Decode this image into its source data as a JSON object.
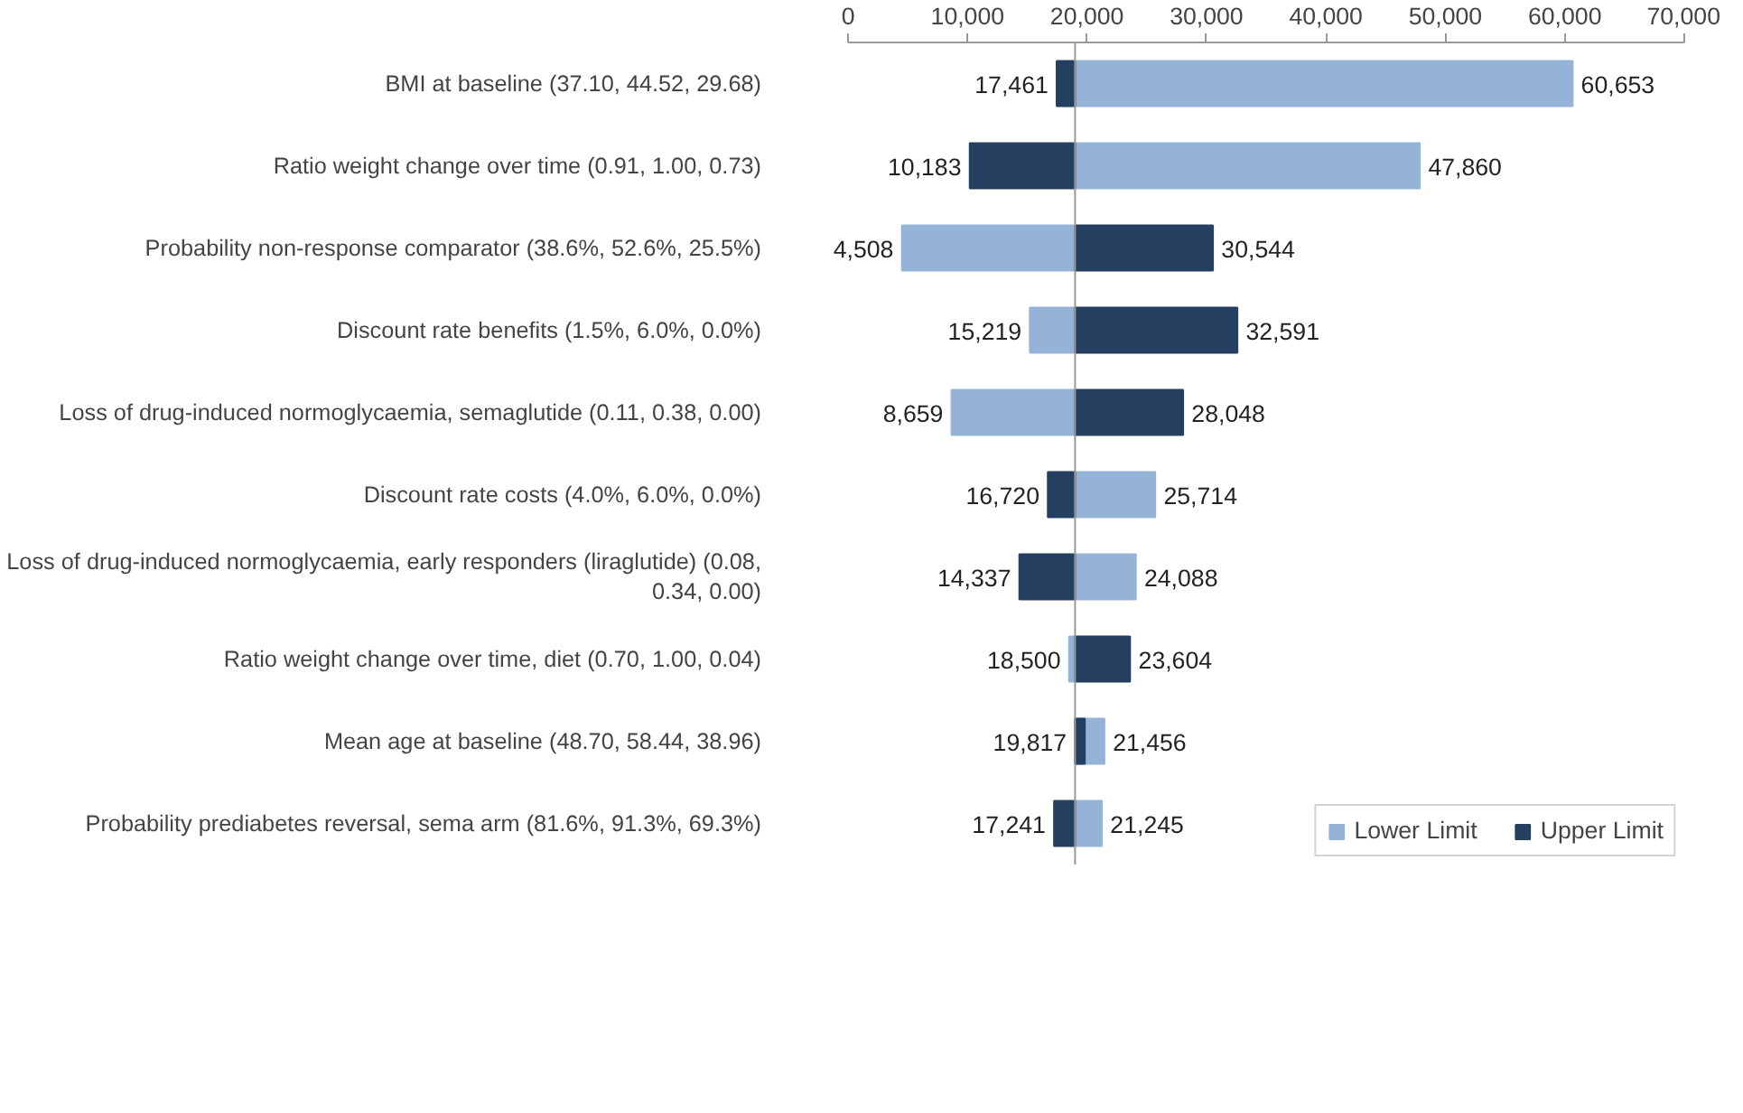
{
  "chart_data": {
    "type": "bar",
    "orientation": "horizontal",
    "categories": [
      "BMI at baseline (37.10, 44.52, 29.68)",
      "Ratio weight change over time (0.91, 1.00, 0.73)",
      "Probability non-response comparator (38.6%, 52.6%, 25.5%)",
      "Discount rate benefits (1.5%, 6.0%, 0.0%)",
      "Loss of drug-induced normoglycaemia, semaglutide (0.11, 0.38, 0.00)",
      "Discount rate costs (4.0%, 6.0%, 0.0%)",
      "Loss of drug-induced normoglycaemia, early responders (liraglutide) (0.08, 0.34, 0.00)",
      "Ratio weight change over time, diet (0.70, 1.00, 0.04)",
      "Mean age at baseline (48.70, 58.44, 38.96)",
      "Probability prediabetes reversal, sema arm (81.6%, 91.3%, 69.3%)"
    ],
    "series": [
      {
        "name": "Lower Limit",
        "color": "#95b3d7",
        "base": [
          19000,
          19000,
          19000,
          19000,
          19000,
          19000,
          19000,
          19000,
          19000,
          19000
        ],
        "values": [
          41653,
          28860,
          -14492,
          -3781,
          -10341,
          6714,
          5088,
          -500,
          2456,
          2245
        ],
        "value_labels": [
          "60,653",
          "47,860",
          "4,508",
          "15,219",
          "8,659",
          "25,714",
          "24,088",
          "18,500",
          "21,456",
          "21,245"
        ]
      },
      {
        "name": "Upper Limit",
        "color": "#243f60",
        "base": [
          19000,
          19000,
          19000,
          19000,
          19000,
          19000,
          19000,
          19000,
          19000,
          19000
        ],
        "values": [
          -1539,
          -8817,
          11544,
          13591,
          9048,
          -2280,
          -4663,
          4604,
          817,
          -1759
        ],
        "value_labels": [
          "17,461",
          "10,183",
          "30,544",
          "32,591",
          "28,048",
          "16,720",
          "14,337",
          "23,604",
          "19,817",
          "17,241"
        ]
      }
    ],
    "xlim": [
      0,
      70000
    ],
    "xticks": [
      {
        "value": 0,
        "label": "0"
      },
      {
        "value": 10000,
        "label": "10,000"
      },
      {
        "value": 20000,
        "label": "20,000"
      },
      {
        "value": 30000,
        "label": "30,000"
      },
      {
        "value": 40000,
        "label": "40,000"
      },
      {
        "value": 50000,
        "label": "50,000"
      },
      {
        "value": 60000,
        "label": "60,000"
      },
      {
        "value": 70000,
        "label": "70,000"
      }
    ],
    "ref_lines": [
      {
        "axis": "x",
        "value": 19000,
        "color": "#999999"
      }
    ],
    "grid": false,
    "legend": "bottom right"
  }
}
